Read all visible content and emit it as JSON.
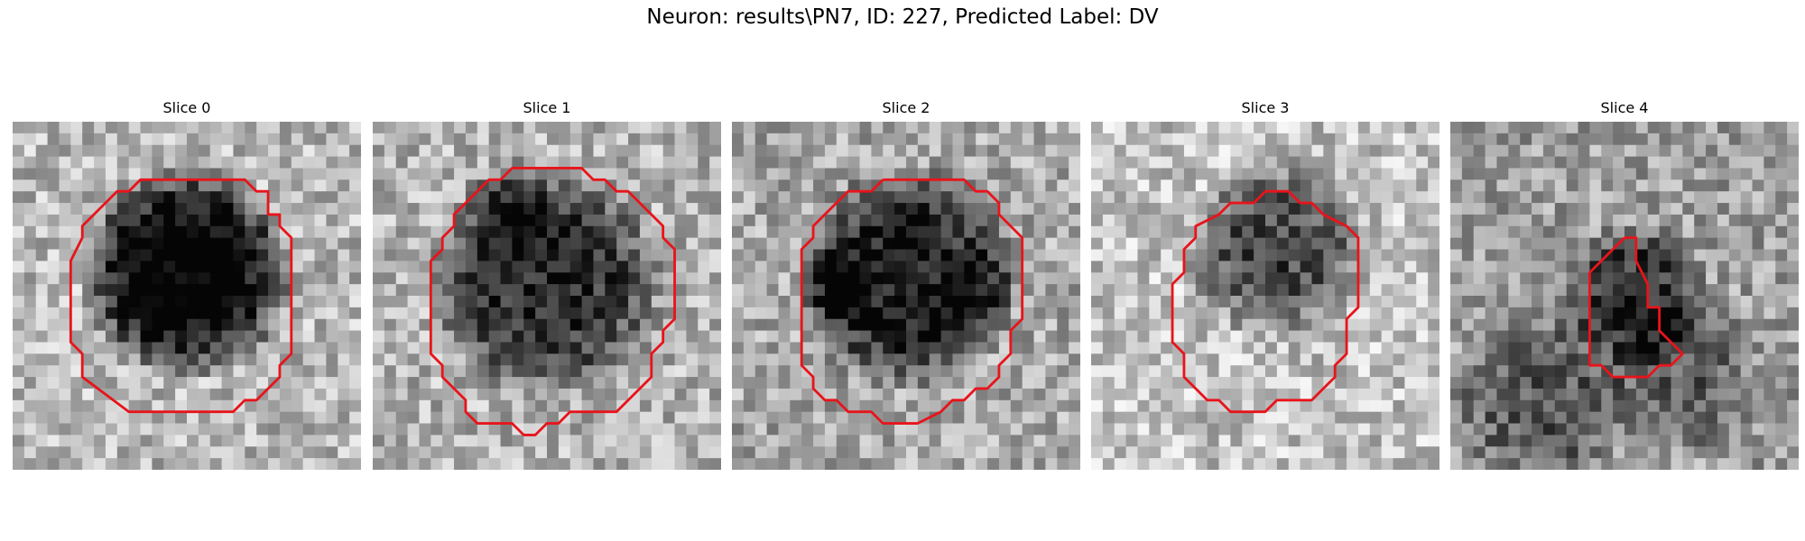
{
  "figure": {
    "title": "Neuron: results\\PN7, ID: 227, Predicted Label: DV"
  },
  "colors": {
    "contour": "#e8141b",
    "background": "#ffffff"
  },
  "grid_size": 30,
  "slices": [
    {
      "title": "Slice 0"
    },
    {
      "title": "Slice 1"
    },
    {
      "title": "Slice 2"
    },
    {
      "title": "Slice 3"
    },
    {
      "title": "Slice 4"
    }
  ]
}
